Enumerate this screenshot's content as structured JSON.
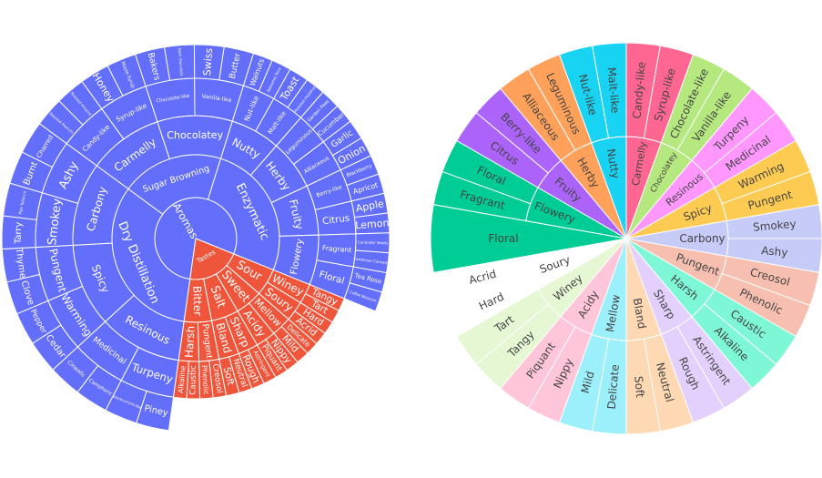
{
  "chart_data": [
    {
      "type": "sunburst",
      "maxdepth": "all",
      "colors": {
        "root": "#636efa",
        "tastes": "#ef553b"
      },
      "root": {
        "label": "Aromas",
        "weight": 6,
        "children": [
          {
            "label": "Enzymatic",
            "weight": 4,
            "children": [
              {
                "label": "Nutty",
                "weight": 1,
                "children": [
                  {
                    "label": "Nut-like",
                    "weight": 1,
                    "children": [
                      {
                        "label": "Walnuts"
                      },
                      {
                        "label": "Balsamic Rice"
                      }
                    ]
                  },
                  {
                    "label": "Malt-like",
                    "weight": 1,
                    "children": [
                      {
                        "label": "Toast"
                      },
                      {
                        "label": "Roasted Hazelnut"
                      }
                    ]
                  }
                ]
              },
              {
                "label": "Herby",
                "weight": 1,
                "children": [
                  {
                    "label": "Leguminous",
                    "weight": 1,
                    "children": [
                      {
                        "label": "Garden Peas"
                      },
                      {
                        "label": "Cucumber"
                      }
                    ]
                  },
                  {
                    "label": "Alliaceous",
                    "weight": 1,
                    "children": [
                      {
                        "label": "Garlic"
                      },
                      {
                        "label": "Onion"
                      }
                    ]
                  }
                ]
              },
              {
                "label": "Fruity",
                "weight": 1,
                "children": [
                  {
                    "label": "Berry-like",
                    "weight": 1,
                    "children": [
                      {
                        "label": "Blackberry"
                      },
                      {
                        "label": "Apricot"
                      }
                    ]
                  },
                  {
                    "label": "Citrus",
                    "weight": 1,
                    "children": [
                      {
                        "label": "Apple"
                      },
                      {
                        "label": "Lemon"
                      }
                    ]
                  }
                ]
              },
              {
                "label": "Flowery",
                "weight": 1,
                "children": [
                  {
                    "label": "Fragrant",
                    "weight": 1,
                    "children": [
                      {
                        "label": "Coriander Seeds"
                      },
                      {
                        "label": "Cardamon Caraway"
                      }
                    ]
                  },
                  {
                    "label": "Floral",
                    "weight": 1,
                    "children": [
                      {
                        "label": "Tea Rose"
                      },
                      {
                        "label": "Coffee Blossom"
                      }
                    ]
                  }
                ]
              }
            ]
          },
          {
            "label": "Sugar Browning",
            "weight": 3,
            "children": [
              {
                "label": "Carmelly",
                "weight": 1,
                "children": [
                  {
                    "label": "Candy-like",
                    "weight": 1,
                    "children": [
                      {
                        "label": "Roasted Peanuts"
                      },
                      {
                        "label": "Roasted Almond"
                      }
                    ]
                  },
                  {
                    "label": "Syrup-like",
                    "weight": 1,
                    "children": [
                      {
                        "label": "Honey"
                      },
                      {
                        "label": "Maple Syrup"
                      }
                    ]
                  }
                ]
              },
              {
                "label": "Chocolatey",
                "weight": 1,
                "children": [
                  {
                    "label": "Chocolate-like",
                    "weight": 1,
                    "children": [
                      {
                        "label": "Bakers"
                      },
                      {
                        "label": "Dark Chocolate"
                      }
                    ]
                  },
                  {
                    "label": "Vanilla-like",
                    "weight": 1,
                    "children": [
                      {
                        "label": "Swiss"
                      },
                      {
                        "label": "Butter"
                      }
                    ]
                  }
                ]
              }
            ]
          },
          {
            "label": "Dry Distillation",
            "weight": 5,
            "children": [
              {
                "label": "Resinous",
                "weight": 1,
                "children": [
                  {
                    "label": "Turpeny",
                    "weight": 1,
                    "children": [
                      {
                        "label": "Piney"
                      },
                      {
                        "label": "Blackcurrant-like"
                      }
                    ]
                  },
                  {
                    "label": "Medicinal",
                    "weight": 1,
                    "children": [
                      {
                        "label": "Camphoric"
                      },
                      {
                        "label": "Cineolic"
                      }
                    ]
                  }
                ]
              },
              {
                "label": "Spicy",
                "weight": 1,
                "children": [
                  {
                    "label": "Warming",
                    "weight": 1,
                    "children": [
                      {
                        "label": "Cedar"
                      },
                      {
                        "label": "Pepper"
                      }
                    ]
                  },
                  {
                    "label": "Pungent",
                    "weight": 1,
                    "children": [
                      {
                        "label": "Clove"
                      },
                      {
                        "label": "Thyme"
                      }
                    ]
                  }
                ]
              },
              {
                "label": "Carbony",
                "weight": 1,
                "children": [
                  {
                    "label": "Smokey",
                    "weight": 1,
                    "children": [
                      {
                        "label": "Tarry"
                      },
                      {
                        "label": "Pipe Tobacco"
                      }
                    ]
                  },
                  {
                    "label": "Ashy",
                    "weight": 1,
                    "children": [
                      {
                        "label": "Burnt"
                      },
                      {
                        "label": "Charred"
                      }
                    ]
                  }
                ]
              }
            ]
          }
        ]
      },
      "tastes": {
        "label": "Tastes",
        "children": [
          {
            "label": "Bitter",
            "children": [
              {
                "label": "Pungent",
                "children": [
                  {
                    "label": "Creosol"
                  },
                  {
                    "label": "Phenolic"
                  }
                ]
              },
              {
                "label": "Harsh",
                "children": [
                  {
                    "label": "Caustic"
                  },
                  {
                    "label": "Alkaline"
                  }
                ]
              }
            ]
          },
          {
            "label": "Salt",
            "children": [
              {
                "label": "Sharp",
                "children": [
                  {
                    "label": "Astringent"
                  },
                  {
                    "label": "Rough"
                  }
                ]
              },
              {
                "label": "Bland",
                "children": [
                  {
                    "label": "Neutral"
                  },
                  {
                    "label": "Soft"
                  }
                ]
              }
            ]
          },
          {
            "label": "Sweet",
            "children": [
              {
                "label": "Mellow",
                "children": [
                  {
                    "label": "Delicate"
                  },
                  {
                    "label": "Mild"
                  }
                ]
              },
              {
                "label": "Acidy",
                "children": [
                  {
                    "label": "Nippy"
                  },
                  {
                    "label": "Piquant"
                  }
                ]
              }
            ]
          },
          {
            "label": "Sour",
            "children": [
              {
                "label": "Winey",
                "children": [
                  {
                    "label": "Tangy"
                  },
                  {
                    "label": "Tart"
                  }
                ]
              },
              {
                "label": "Soury",
                "children": [
                  {
                    "label": "Hard"
                  },
                  {
                    "label": "Acrid"
                  }
                ]
              }
            ]
          }
        ]
      }
    },
    {
      "type": "sunburst",
      "maxdepth": 2,
      "segments": [
        {
          "label": "Nutty",
          "children": [
            "Nut-like",
            "Malt-like"
          ]
        },
        {
          "label": "Carmelly",
          "children": [
            "Candy-like",
            "Syrup-like"
          ]
        },
        {
          "label": "Chocolatey",
          "children": [
            "Chocolate-like",
            "Vanilla-like"
          ]
        },
        {
          "label": "Resinous",
          "children": [
            "Turpeny",
            "Medicinal"
          ]
        },
        {
          "label": "Spicy",
          "children": [
            "Warming",
            "Pungent"
          ]
        },
        {
          "label": "Carbony",
          "children": [
            "Smokey",
            "Ashy"
          ]
        },
        {
          "label": "Pungent",
          "children": [
            "Creosol",
            "Phenolic"
          ]
        },
        {
          "label": "Harsh",
          "children": [
            "Caustic",
            "Alkaline"
          ]
        },
        {
          "label": "Sharp",
          "children": [
            "Astringent",
            "Rough"
          ]
        },
        {
          "label": "Bland",
          "children": [
            "Neutral",
            "Soft"
          ]
        },
        {
          "label": "Mellow",
          "children": [
            "Delicate",
            "Mild"
          ]
        },
        {
          "label": "Acidy",
          "children": [
            "Nippy",
            "Piquant"
          ]
        },
        {
          "label": "Winey",
          "children": [
            "Tangy",
            "Tart"
          ]
        },
        {
          "label": "Soury",
          "children": [
            "Hard",
            "Acrid"
          ]
        },
        {
          "label": "Floral"
        },
        {
          "label": "Flowery",
          "children": [
            "Fragrant",
            "Floral"
          ]
        },
        {
          "label": "Fruity",
          "children": [
            "Citrus",
            "Berry-like"
          ]
        },
        {
          "label": "Herby",
          "children": [
            "Alliaceous",
            "Leguminous"
          ]
        }
      ],
      "segment_colors": [
        "#19d3f3",
        "#ff6692",
        "#b6e880",
        "#ff97ff",
        "#fecb52",
        "#c6cbf8",
        "#f7bfb0",
        "#7ef7d6",
        "#e4d0fc",
        "#ffd9b3",
        "#9cf0fb",
        "#ffc6d9",
        "#e6f7d4",
        "#ffffff",
        "#00cc96",
        "#00cc96",
        "#ab63fa",
        "#ffa15a"
      ]
    }
  ]
}
